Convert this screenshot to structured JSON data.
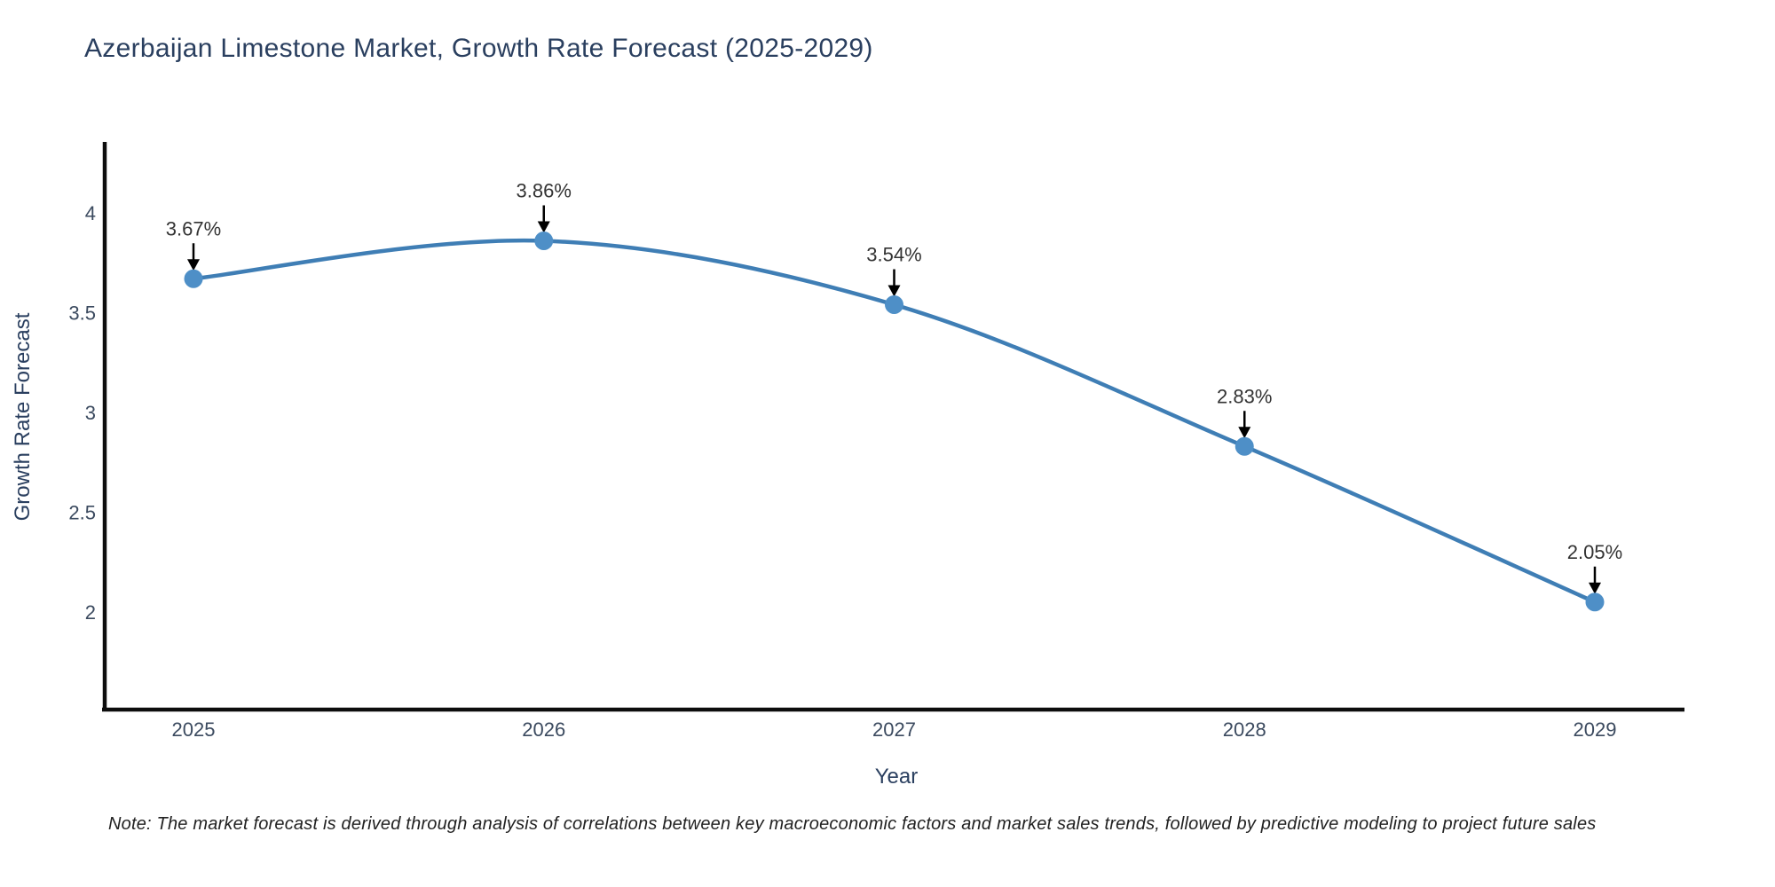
{
  "chart_data": {
    "type": "line",
    "title": "Azerbaijan Limestone Market, Growth Rate Forecast (2025-2029)",
    "xlabel": "Year",
    "ylabel": "Growth Rate Forecast",
    "categories": [
      "2025",
      "2026",
      "2027",
      "2028",
      "2029"
    ],
    "series": [
      {
        "name": "Growth Rate Forecast",
        "values": [
          3.67,
          3.86,
          3.54,
          2.83,
          2.05
        ],
        "point_labels": [
          "3.67%",
          "3.86%",
          "3.54%",
          "2.83%",
          "2.05%"
        ]
      }
    ],
    "yticks": [
      2,
      2.5,
      3,
      3.5,
      4
    ],
    "ylim": [
      1.5,
      4.36
    ],
    "line_shape": "spline",
    "grid": false,
    "legend_position": "none",
    "annotations_style": "black-arrow-above-each-point",
    "note": "Note: The market forecast is derived through analysis of correlations between key macroeconomic factors and market sales trends, followed by predictive modeling to project future sales",
    "colors": {
      "line": "#3f7eb5",
      "marker": "#4e8fc7",
      "axis": "#0d0d0d",
      "title_text": "#2a3f5f",
      "tick_text": "#3b4a5f",
      "annotation_text": "#333333",
      "arrow": "#000000",
      "background": "#ffffff"
    }
  }
}
